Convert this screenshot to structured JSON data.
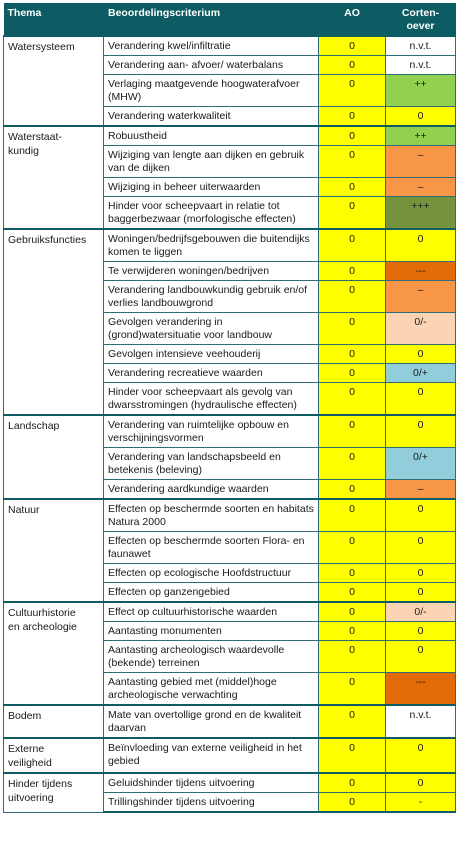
{
  "header": {
    "thema": "Thema",
    "criterium": "Beoordelingscriterium",
    "ao": "AO",
    "corten": "Corten-\noever"
  },
  "colors": {
    "header_bg": "#0d5c63",
    "neutral_yellow": "#ffff00",
    "light_green": "#92d050",
    "dark_green": "#76923c",
    "light_orange": "#f79646",
    "dark_orange": "#e36c09",
    "pale_orange": "#fbd4b4",
    "light_blue": "#92cddc",
    "white": "#ffffff"
  },
  "groups": [
    {
      "thema": "Watersysteem",
      "rows": [
        {
          "criterium": "Verandering kwel/infiltratie",
          "ao": "0",
          "co": "n.v.t.",
          "co_color": "white"
        },
        {
          "criterium": "Verandering aan- afvoer/ waterbalans",
          "ao": "0",
          "co": "n.v.t.",
          "co_color": "white"
        },
        {
          "criterium": "Verlaging maatgevende hoogwaterafvoer (MHW)",
          "ao": "0",
          "co": "++",
          "co_color": "light_green",
          "tall": true
        },
        {
          "criterium": "Verandering waterkwaliteit",
          "ao": "0",
          "co": "0",
          "co_color": "neutral_yellow"
        }
      ]
    },
    {
      "thema": "Waterstaat-\nkundig",
      "rows": [
        {
          "criterium": "Robuustheid",
          "ao": "0",
          "co": "++",
          "co_color": "light_green"
        },
        {
          "criterium": "Wijziging van lengte aan dijken en gebruik van de dijken",
          "ao": "0",
          "co": "–",
          "co_color": "light_orange",
          "tall": true
        },
        {
          "criterium": "Wijziging in beheer uiterwaarden",
          "ao": "0",
          "co": "–",
          "co_color": "light_orange"
        },
        {
          "criterium": "Hinder voor scheepvaart in relatie tot baggerbezwaar (morfologische effecten)",
          "ao": "0",
          "co": "+++",
          "co_color": "dark_green",
          "tall": true
        }
      ]
    },
    {
      "thema": "Gebruiksfuncties",
      "rows": [
        {
          "criterium": "Woningen/bedrijfsgebouwen die buitendijks komen te liggen",
          "ao": "0",
          "co": "0",
          "co_color": "neutral_yellow",
          "tall": true
        },
        {
          "criterium": "Te verwijderen woningen/bedrijven",
          "ao": "0",
          "co": "---",
          "co_color": "dark_orange"
        },
        {
          "criterium": "Verandering landbouwkundig gebruik en/of verlies landbouwgrond",
          "ao": "0",
          "co": "–",
          "co_color": "light_orange",
          "tall": true
        },
        {
          "criterium": "Gevolgen verandering in (grond)watersituatie voor landbouw",
          "ao": "0",
          "co": "0/-",
          "co_color": "pale_orange",
          "tall": true
        },
        {
          "criterium": "Gevolgen intensieve veehouderij",
          "ao": "0",
          "co": "0",
          "co_color": "neutral_yellow"
        },
        {
          "criterium": "Verandering recreatieve waarden",
          "ao": "0",
          "co": "0/+",
          "co_color": "light_blue"
        },
        {
          "criterium": "Hinder voor scheepvaart als gevolg van dwarsstromingen (hydraulische effecten)",
          "ao": "0",
          "co": "0",
          "co_color": "neutral_yellow",
          "tall": true
        }
      ]
    },
    {
      "thema": "Landschap",
      "rows": [
        {
          "criterium": "Verandering van ruimtelijke opbouw en verschijningsvormen",
          "ao": "0",
          "co": "0",
          "co_color": "neutral_yellow",
          "tall": true
        },
        {
          "criterium": "Verandering van landschapsbeeld en betekenis (beleving)",
          "ao": "0",
          "co": "0/+",
          "co_color": "light_blue",
          "tall": true
        },
        {
          "criterium": "Verandering aardkundige waarden",
          "ao": "0",
          "co": "–",
          "co_color": "light_orange"
        }
      ]
    },
    {
      "thema": "Natuur",
      "rows": [
        {
          "criterium": "Effecten op beschermde soorten en habitats Natura 2000",
          "ao": "0",
          "co": "0",
          "co_color": "neutral_yellow",
          "tall": true
        },
        {
          "criterium": "Effecten op beschermde soorten Flora- en faunawet",
          "ao": "0",
          "co": "0",
          "co_color": "neutral_yellow",
          "tall": true
        },
        {
          "criterium": "Effecten op ecologische Hoofdstructuur",
          "ao": "0",
          "co": "0",
          "co_color": "neutral_yellow"
        },
        {
          "criterium": "Effecten op ganzengebied",
          "ao": "0",
          "co": "0",
          "co_color": "neutral_yellow"
        }
      ]
    },
    {
      "thema": "Cultuurhistorie\nen archeologie",
      "rows": [
        {
          "criterium": "Effect op cultuurhistorische waarden",
          "ao": "0",
          "co": "0/-",
          "co_color": "pale_orange"
        },
        {
          "criterium": "Aantasting monumenten",
          "ao": "0",
          "co": "0",
          "co_color": "neutral_yellow"
        },
        {
          "criterium": "Aantasting archeologisch waardevolle (bekende) terreinen",
          "ao": "0",
          "co": "0",
          "co_color": "neutral_yellow",
          "tall": true
        },
        {
          "criterium": "Aantasting gebied met (middel)hoge archeologische verwachting",
          "ao": "0",
          "co": "---",
          "co_color": "dark_orange",
          "tall": true
        }
      ]
    },
    {
      "thema": "Bodem",
      "rows": [
        {
          "criterium": "Mate van overtollige grond en de kwaliteit daarvan",
          "ao": "0",
          "co": "n.v.t.",
          "co_color": "white",
          "tall": true
        }
      ]
    },
    {
      "thema": "Externe\nveiligheid",
      "rows": [
        {
          "criterium": "Beïnvloeding van externe veiligheid in het gebied",
          "ao": "0",
          "co": "0",
          "co_color": "neutral_yellow",
          "tall": true
        }
      ]
    },
    {
      "thema": "Hinder tijdens\nuitvoering",
      "rows": [
        {
          "criterium": "Geluidshinder tijdens uitvoering",
          "ao": "0",
          "co": "0",
          "co_color": "neutral_yellow"
        },
        {
          "criterium": "Trillingshinder tijdens uitvoering",
          "ao": "0",
          "co": "-",
          "co_color": "neutral_yellow"
        }
      ]
    }
  ]
}
